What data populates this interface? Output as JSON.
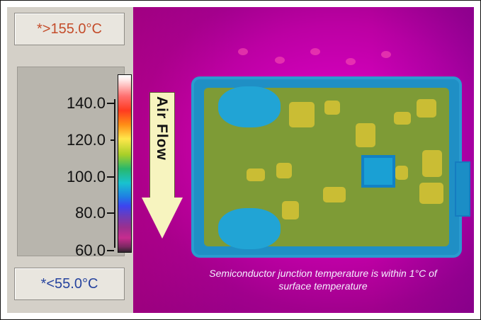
{
  "scale": {
    "high": "*>155.0°C",
    "low": "*<55.0°C",
    "ticks": [
      {
        "label": "140.0"
      },
      {
        "label": "120.0"
      },
      {
        "label": "100.0"
      },
      {
        "label": "80.0"
      },
      {
        "label": "60.0"
      }
    ]
  },
  "arrow": {
    "label": "Air Flow"
  },
  "caption": "Semiconductor junction temperature is within 1°C of surface temperature",
  "colors": {
    "background": "#ffffff",
    "panel": "#d4d0c8",
    "high_text": "#c44d2b",
    "low_text": "#26439e",
    "thermal_base": "#c000a8",
    "board_blue": "#1f8fc5",
    "board_green": "#7e9b36",
    "hot_yellow": "#cfbf35"
  },
  "icons": [
    "color-scale-icon",
    "air-flow-arrow-icon"
  ]
}
